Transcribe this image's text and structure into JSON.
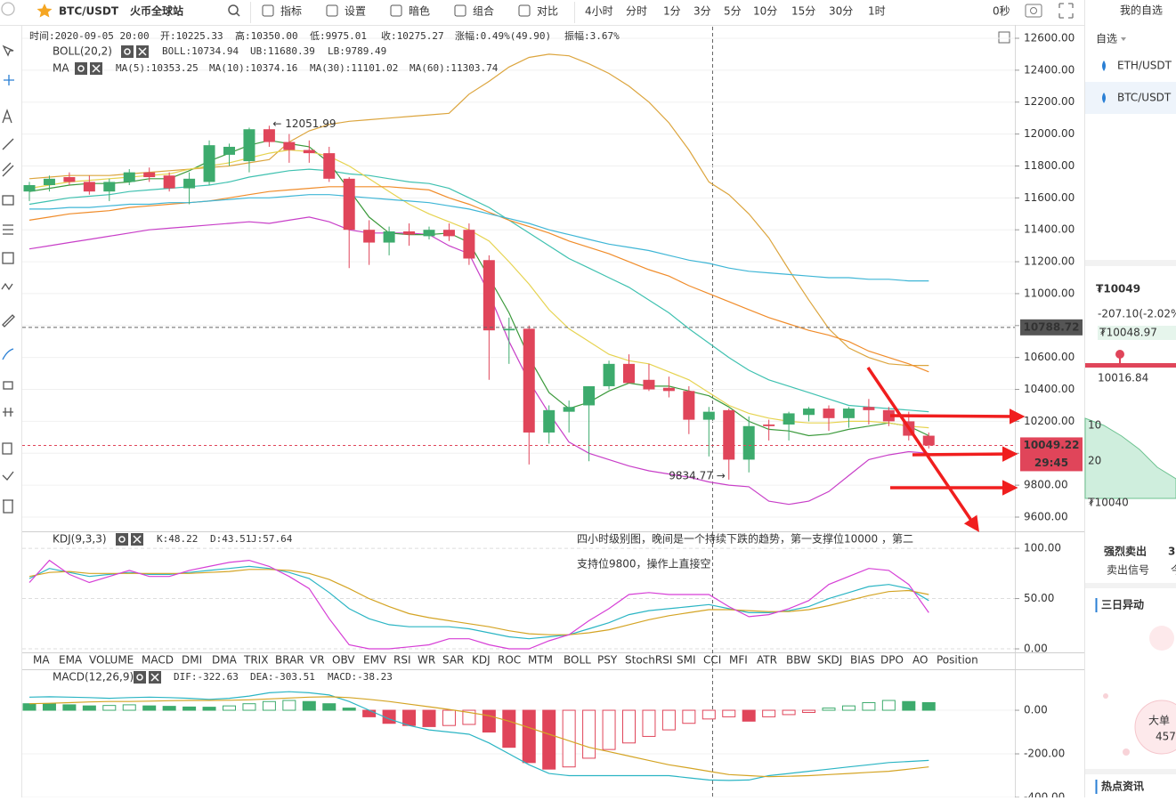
{
  "toolbar": {
    "pair": "BTC/USDT",
    "exchange": "火币全球站",
    "buttons": [
      "指标",
      "设置",
      "暗色",
      "组合",
      "对比"
    ],
    "periods": [
      "4小时",
      "分时",
      "1分",
      "3分",
      "5分",
      "10分",
      "15分",
      "30分",
      "1时"
    ],
    "timer": "0秒"
  },
  "info": [
    "时间:2020-09-05 20:00",
    "开:10225.33",
    "高:10350.00",
    "低:9975.01",
    "收:10275.27",
    "涨幅:0.49%(49.90)",
    "振幅:3.67%"
  ],
  "indicator_tabs": [
    "MA",
    "EMA",
    "VOLUME",
    "MACD",
    "DMI",
    "DMA",
    "TRIX",
    "BRAR",
    "VR",
    "OBV",
    "EMV",
    "RSI",
    "WR",
    "SAR",
    "KDJ",
    "ROC",
    "MTM",
    "BOLL",
    "PSY",
    "StochRSI",
    "SMI",
    "CCI",
    "MFI",
    "ATR",
    "BBW",
    "SKDJ",
    "BIAS",
    "DPO",
    "AO",
    "Position"
  ],
  "annotation": [
    "四小时级别图，晚间是一个持续下跌的趋势，第一支撑位10000 ，第二",
    "支持位9800，操作上直接空"
  ],
  "sidebar": {
    "title": "我的自选",
    "tab": "自选",
    "pairs": [
      "ETH/USDT",
      "BTC/USDT"
    ],
    "price": "₮10049",
    "change": "-207.10(-2.02%",
    "price_box": "₮10048.97",
    "slider_low": "10016.84",
    "mini_labels": [
      "10",
      "20",
      "₮10040"
    ],
    "signal": "强烈卖出",
    "signal_sub": "卖出信号",
    "signal_right": "3",
    "signal_right_sub": "今",
    "section1": "三日异动",
    "bubble_title": "大单",
    "bubble_value": "457",
    "section2": "热点资讯"
  },
  "chart_data": [
    {
      "type": "candlestick",
      "boll_label": "BOLL(20,2)",
      "ma_label": "MA",
      "ylim": [
        9510.8,
        12672.5
      ],
      "yticks": [
        {
          "value": 12600,
          "label": "12600.00"
        },
        {
          "value": 12400,
          "label": "12400.00"
        },
        {
          "value": 12200,
          "label": "12200.00"
        },
        {
          "value": 12000,
          "label": "12000.00"
        },
        {
          "value": 11800,
          "label": "11800.00"
        },
        {
          "value": 11600,
          "label": "11600.00"
        },
        {
          "value": 11400,
          "label": "11400.00"
        },
        {
          "value": 11200,
          "label": "11200.00"
        },
        {
          "value": 11000,
          "label": "11000.00"
        },
        {
          "value": 10800,
          "label": "10800.00"
        },
        {
          "value": 10600,
          "label": "10600.00"
        },
        {
          "value": 10400,
          "label": "10400.00"
        },
        {
          "value": 10200,
          "label": "10200.00"
        },
        {
          "value": 10000,
          "label": "10000.00"
        },
        {
          "value": 9800,
          "label": "9800.00"
        },
        {
          "value": 9600,
          "label": "9600.00"
        }
      ],
      "grid": true,
      "up_color": "#3dab6d",
      "down_color": "#e0455a",
      "crosshair_price": 10788.72,
      "last_price": 10049.22,
      "countdown": "29:45",
      "markers": [
        {
          "value": 12051.99,
          "label": "← 12051.99"
        },
        {
          "value": 9834.77,
          "label": "9834.77 →"
        }
      ],
      "open": [
        11640,
        11680,
        11730,
        11700,
        11640,
        11700,
        11760,
        11740,
        11660,
        11700,
        11870,
        11830,
        12030,
        11950,
        11900,
        11880,
        11720,
        11400,
        11320,
        11390,
        11360,
        11400,
        11400,
        11210,
        10770,
        10780,
        10130,
        10260,
        10300,
        10420,
        10560,
        10460,
        10410,
        10390,
        10210,
        10270,
        9960,
        10180,
        10180,
        10240,
        10280,
        10220,
        10290,
        10270,
        10200,
        10110
      ],
      "high": [
        11700,
        11740,
        11760,
        11740,
        11720,
        11780,
        11790,
        11760,
        11760,
        11960,
        11940,
        12040,
        12051.99,
        12000,
        11960,
        11920,
        11730,
        11460,
        11420,
        11440,
        11420,
        11440,
        11440,
        11240,
        10850,
        10800,
        10300,
        10330,
        10420,
        10580,
        10620,
        10560,
        10480,
        10420,
        10290,
        10280,
        10230,
        10210,
        10260,
        10290,
        10300,
        10290,
        10340,
        10290,
        10260,
        10130
      ],
      "low": [
        11580,
        11640,
        11680,
        11620,
        11580,
        11680,
        11700,
        11640,
        11560,
        11680,
        11800,
        11760,
        11920,
        11820,
        11820,
        11700,
        11160,
        11180,
        11240,
        11300,
        11340,
        11330,
        11180,
        10460,
        10560,
        9930,
        10060,
        10130,
        9950,
        10400,
        10440,
        10390,
        10350,
        10120,
        9980,
        9834.77,
        9880,
        10080,
        10080,
        10200,
        10140,
        10160,
        10180,
        10170,
        10080,
        10030
      ],
      "close": [
        11680,
        11720,
        11700,
        11640,
        11700,
        11760,
        11730,
        11660,
        11720,
        11930,
        11920,
        12030,
        11950,
        11900,
        11880,
        11720,
        11400,
        11320,
        11390,
        11370,
        11400,
        11360,
        11220,
        10770,
        10780,
        10130,
        10270,
        10290,
        10420,
        10560,
        10440,
        10400,
        10390,
        10210,
        10260,
        9960,
        10170,
        10170,
        10250,
        10280,
        10220,
        10280,
        10270,
        10200,
        10110,
        10049.22
      ],
      "series": [
        {
          "name": "BOLL:10734.94",
          "color": "#3fc1b0",
          "values": [
            11560,
            11580,
            11600,
            11610,
            11620,
            11640,
            11650,
            11660,
            11670,
            11680,
            11700,
            11730,
            11750,
            11770,
            11780,
            11770,
            11750,
            11740,
            11720,
            11700,
            11690,
            11660,
            11600,
            11540,
            11460,
            11380,
            11300,
            11220,
            11160,
            11100,
            11040,
            10960,
            10880,
            10780,
            10690,
            10600,
            10520,
            10460,
            10420,
            10380,
            10340,
            10300,
            10290,
            10280,
            10270,
            10260
          ]
        },
        {
          "name": "UB:11680.39",
          "color": "#dca53e",
          "values": [
            11720,
            11730,
            11740,
            11740,
            11740,
            11750,
            11760,
            11770,
            11780,
            11790,
            11800,
            11820,
            11840,
            11950,
            12020,
            12060,
            12080,
            12090,
            12100,
            12110,
            12120,
            12130,
            12250,
            12330,
            12420,
            12480,
            12500,
            12490,
            12440,
            12380,
            12300,
            12200,
            12070,
            11900,
            11700,
            11620,
            11500,
            11350,
            11150,
            10960,
            10780,
            10660,
            10600,
            10560,
            10550,
            10550
          ]
        },
        {
          "name": "LB:9789.49",
          "color": "#c83fc8",
          "values": [
            11280,
            11300,
            11320,
            11340,
            11360,
            11380,
            11400,
            11410,
            11420,
            11430,
            11440,
            11450,
            11440,
            11460,
            11480,
            11450,
            11400,
            11380,
            11380,
            11380,
            11370,
            11300,
            11250,
            11000,
            10700,
            10450,
            10250,
            10070,
            10000,
            9960,
            9920,
            9890,
            9870,
            9850,
            9820,
            9800,
            9790,
            9700,
            9680,
            9700,
            9760,
            9860,
            9960,
            9990,
            10010,
            10000
          ]
        },
        {
          "name": "MA(5):10353.25",
          "color": "#3c9a3c",
          "values": [
            11640,
            11660,
            11680,
            11690,
            11690,
            11700,
            11720,
            11720,
            11770,
            11830,
            11880,
            11930,
            11960,
            11940,
            11920,
            11820,
            11650,
            11480,
            11380,
            11370,
            11370,
            11380,
            11320,
            11100,
            10880,
            10600,
            10380,
            10280,
            10320,
            10390,
            10440,
            10420,
            10420,
            10390,
            10360,
            10290,
            10200,
            10150,
            10140,
            10110,
            10120,
            10150,
            10170,
            10190,
            10170,
            10110
          ]
        },
        {
          "name": "MA(10):10374.16",
          "color": "#e6d350",
          "values": [
            11660,
            11680,
            11700,
            11710,
            11720,
            11730,
            11740,
            11750,
            11780,
            11800,
            11820,
            11850,
            11880,
            11900,
            11890,
            11860,
            11800,
            11720,
            11640,
            11560,
            11500,
            11450,
            11400,
            11330,
            11200,
            11060,
            10900,
            10780,
            10700,
            10620,
            10580,
            10560,
            10510,
            10460,
            10380,
            10300,
            10250,
            10220,
            10200,
            10190,
            10190,
            10200,
            10200,
            10190,
            10170,
            10160
          ]
        },
        {
          "name": "MA(30):11101.02",
          "color": "#f08c2a",
          "values": [
            11460,
            11480,
            11500,
            11510,
            11520,
            11540,
            11550,
            11560,
            11570,
            11580,
            11600,
            11620,
            11640,
            11650,
            11660,
            11670,
            11670,
            11670,
            11670,
            11660,
            11650,
            11600,
            11560,
            11510,
            11460,
            11420,
            11380,
            11330,
            11290,
            11250,
            11200,
            11150,
            11110,
            11050,
            11000,
            10950,
            10900,
            10850,
            10810,
            10770,
            10740,
            10700,
            10640,
            10600,
            10560,
            10510
          ]
        },
        {
          "name": "MA(60):11303.74",
          "color": "#3fb6d6",
          "values": [
            11530,
            11530,
            11540,
            11540,
            11550,
            11560,
            11560,
            11570,
            11570,
            11580,
            11590,
            11600,
            11600,
            11610,
            11620,
            11620,
            11610,
            11600,
            11590,
            11580,
            11570,
            11550,
            11530,
            11500,
            11470,
            11440,
            11400,
            11370,
            11340,
            11310,
            11290,
            11270,
            11240,
            11210,
            11190,
            11160,
            11140,
            11130,
            11120,
            11110,
            11100,
            11100,
            11090,
            11090,
            11080,
            11080
          ]
        }
      ]
    },
    {
      "type": "line",
      "title": "KDJ(9,3,3)",
      "ylim": [
        -3.5,
        116
      ],
      "yticks": [
        {
          "value": 100,
          "label": "100.00"
        },
        {
          "value": 50,
          "label": "50.00"
        },
        {
          "value": 0,
          "label": "0.00"
        }
      ],
      "grid": true,
      "series": [
        {
          "name": "K:48.22",
          "color": "#2bb5c4",
          "values": [
            70,
            80,
            76,
            72,
            74,
            76,
            74,
            74,
            76,
            78,
            80,
            82,
            80,
            76,
            70,
            56,
            40,
            30,
            24,
            22,
            22,
            22,
            20,
            16,
            12,
            10,
            12,
            14,
            20,
            26,
            34,
            38,
            40,
            42,
            44,
            40,
            36,
            36,
            38,
            42,
            50,
            56,
            62,
            64,
            60,
            48
          ]
        },
        {
          "name": "D:43.51",
          "color": "#d4a424",
          "values": [
            72,
            76,
            77,
            75,
            75,
            75,
            75,
            75,
            75,
            76,
            77,
            79,
            79,
            78,
            75,
            69,
            60,
            50,
            42,
            35,
            31,
            28,
            25,
            22,
            18,
            15,
            14,
            14,
            16,
            19,
            24,
            29,
            33,
            36,
            39,
            39,
            38,
            37,
            37,
            39,
            43,
            48,
            53,
            57,
            58,
            54
          ]
        },
        {
          "name": "J:57.64",
          "color": "#d63fd6",
          "values": [
            66,
            88,
            74,
            66,
            72,
            78,
            72,
            72,
            78,
            82,
            86,
            88,
            82,
            72,
            60,
            30,
            4,
            0,
            0,
            2,
            4,
            10,
            10,
            4,
            0,
            0,
            8,
            14,
            28,
            40,
            54,
            56,
            54,
            54,
            54,
            42,
            32,
            34,
            40,
            48,
            64,
            72,
            80,
            78,
            64,
            36
          ]
        }
      ]
    },
    {
      "type": "combo",
      "title": "MACD(12,26,9)",
      "ylim": [
        -400,
        188
      ],
      "yticks": [
        {
          "value": 0,
          "label": "0.00"
        },
        {
          "value": -200,
          "label": "-200.00"
        },
        {
          "value": -400,
          "label": "-400.00"
        }
      ],
      "grid": true,
      "series": [
        {
          "name": "DIF:-322.63",
          "kind": "line",
          "color": "#2bb5c4",
          "values": [
            60,
            62,
            60,
            58,
            55,
            58,
            60,
            58,
            55,
            50,
            55,
            65,
            80,
            85,
            80,
            70,
            40,
            0,
            -40,
            -70,
            -90,
            -100,
            -110,
            -150,
            -200,
            -250,
            -290,
            -300,
            -300,
            -300,
            -300,
            -300,
            -300,
            -310,
            -320,
            -322,
            -320,
            -300,
            -290,
            -280,
            -270,
            -260,
            -250,
            -240,
            -235,
            -230
          ]
        },
        {
          "name": "DEA:-303.51",
          "kind": "line",
          "color": "#d4a424",
          "values": [
            30,
            32,
            35,
            38,
            40,
            40,
            42,
            44,
            45,
            45,
            46,
            48,
            52,
            56,
            60,
            62,
            58,
            50,
            40,
            28,
            16,
            4,
            -10,
            -25,
            -50,
            -80,
            -110,
            -140,
            -170,
            -190,
            -210,
            -230,
            -250,
            -265,
            -280,
            -295,
            -300,
            -305,
            -303,
            -300,
            -295,
            -290,
            -285,
            -280,
            -270,
            -260
          ]
        },
        {
          "name": "MACD:-38.23",
          "kind": "bar",
          "color": "#d63fd6",
          "up_color": "#3dab6d",
          "down_color": "#e0455a",
          "values": [
            30,
            30,
            25,
            20,
            22,
            25,
            20,
            18,
            15,
            14,
            20,
            30,
            40,
            45,
            40,
            30,
            10,
            -30,
            -60,
            -70,
            -75,
            -70,
            -65,
            -100,
            -170,
            -240,
            -270,
            -260,
            -220,
            -180,
            -150,
            -120,
            -90,
            -60,
            -40,
            -30,
            -50,
            -30,
            -20,
            -10,
            10,
            20,
            35,
            45,
            40,
            35
          ]
        }
      ]
    }
  ]
}
